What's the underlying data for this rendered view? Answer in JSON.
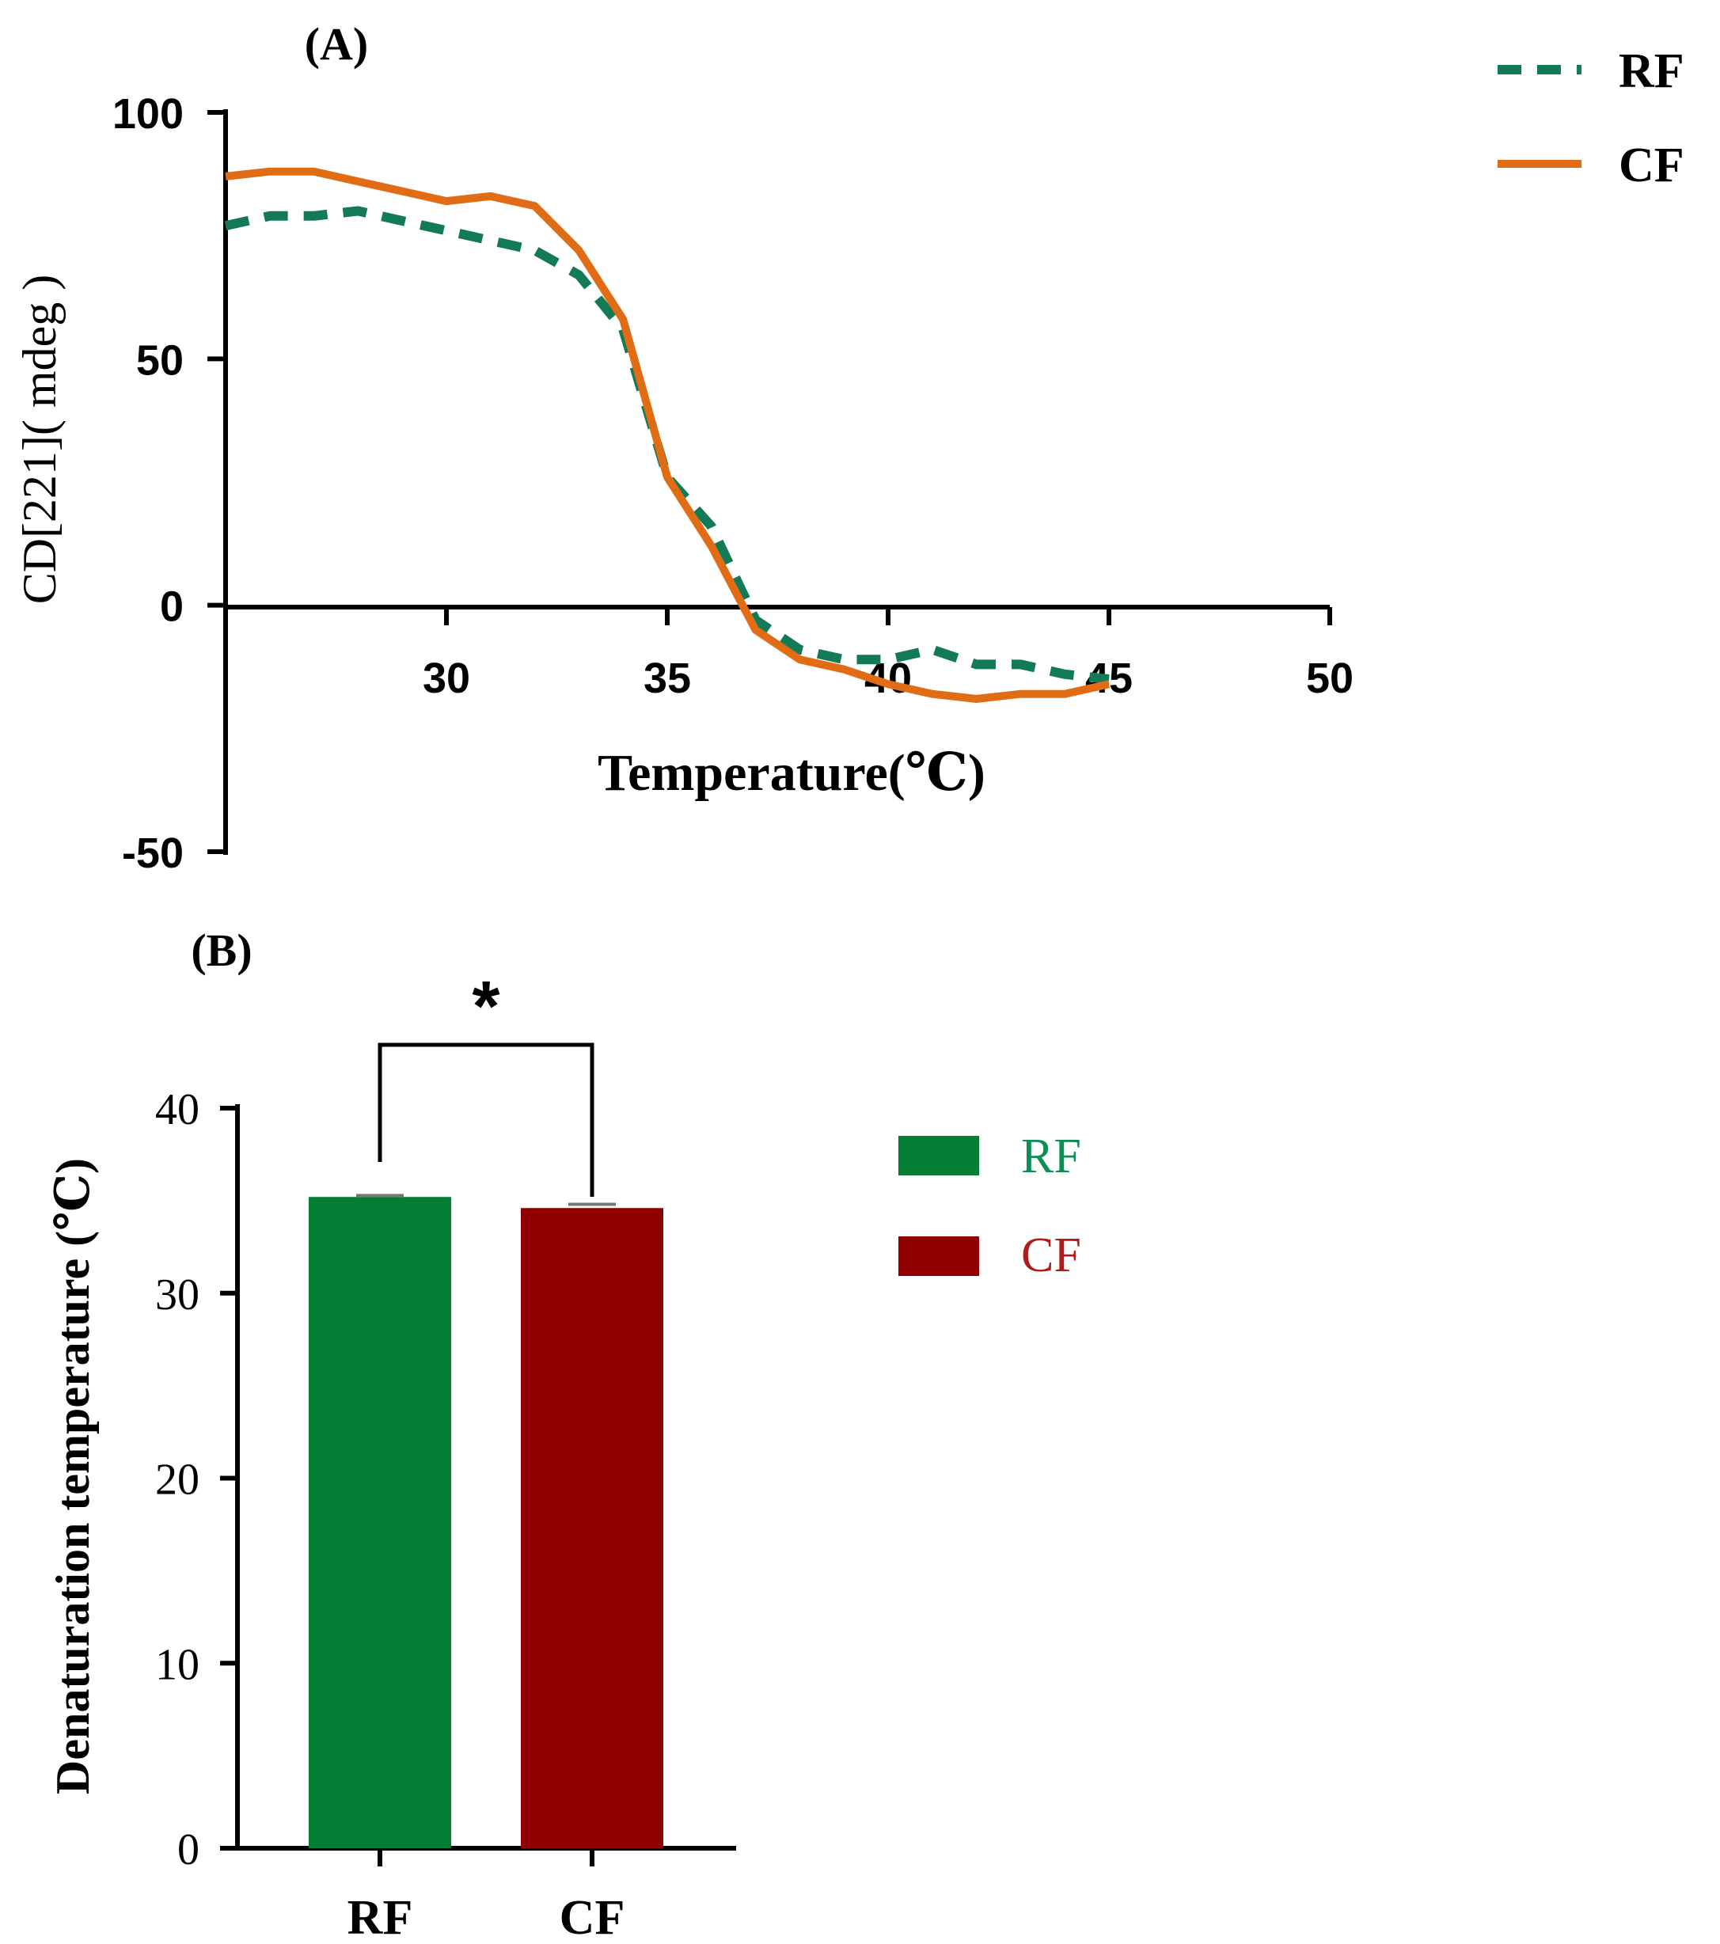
{
  "colors": {
    "rf_line": "#137a56",
    "cf_line": "#e06c15",
    "rf_bar": "#047e35",
    "cf_bar": "#910000",
    "rf_text": "#0e8d55",
    "cf_text": "#b01c1c",
    "axis": "#000000"
  },
  "chart_data": [
    {
      "panel": "A",
      "panel_label": "(A)",
      "type": "line",
      "xlabel": "Temperature(℃)",
      "ylabel": "CD[221]( mdeg )",
      "xlim": [
        25,
        50
      ],
      "ylim": [
        -50,
        100
      ],
      "xticks": [
        30,
        35,
        40,
        45,
        50
      ],
      "yticks": [
        -50,
        0,
        50,
        100
      ],
      "xtick_labels": [
        "30",
        "35",
        "40",
        "45",
        "50"
      ],
      "ytick_labels": [
        "-50",
        "0",
        "50",
        "100"
      ],
      "grid": false,
      "legend_position": "top-right",
      "series": [
        {
          "name": "RF",
          "style": "dashed",
          "x": [
            25,
            26,
            27,
            28,
            29,
            30,
            31,
            32,
            33,
            34,
            35,
            36,
            37,
            38,
            39,
            40,
            41,
            42,
            43,
            44,
            45
          ],
          "y": [
            77,
            79,
            79,
            80,
            78,
            76,
            74,
            72,
            67,
            56,
            26,
            16,
            -3,
            -9,
            -11,
            -11,
            -9,
            -12,
            -12,
            -14,
            -15
          ]
        },
        {
          "name": "CF",
          "style": "solid",
          "x": [
            25,
            26,
            27,
            28,
            29,
            30,
            31,
            32,
            33,
            34,
            35,
            36,
            37,
            38,
            39,
            40,
            41,
            42,
            43,
            44,
            45
          ],
          "y": [
            87,
            88,
            88,
            86,
            84,
            82,
            83,
            81,
            72,
            58,
            26,
            12,
            -5,
            -11,
            -13,
            -16,
            -18,
            -19,
            -18,
            -18,
            -16
          ]
        }
      ]
    },
    {
      "panel": "B",
      "panel_label": "(B)",
      "type": "bar",
      "categories": [
        "RF",
        "CF"
      ],
      "values": [
        35.2,
        34.6
      ],
      "errors": [
        0.08,
        0.2
      ],
      "ylabel": "Denaturation temperature (℃)",
      "xlabel": "",
      "ylim": [
        0,
        40
      ],
      "yticks": [
        0,
        10,
        20,
        30,
        40
      ],
      "ytick_labels": [
        "0",
        "10",
        "20",
        "30",
        "40"
      ],
      "legend": [
        "RF",
        "CF"
      ],
      "legend_position": "right",
      "significance": {
        "between": [
          "RF",
          "CF"
        ],
        "label": "*"
      }
    }
  ]
}
